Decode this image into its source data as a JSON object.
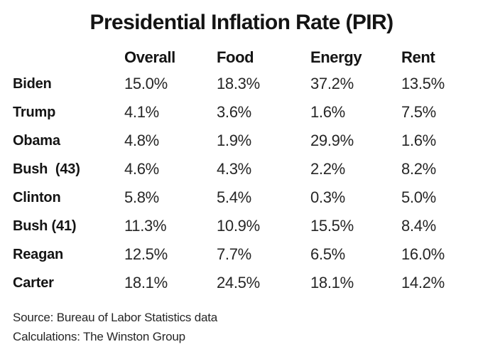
{
  "chart_data": {
    "type": "table",
    "title": "Presidential Inflation Rate (PIR)",
    "columns": [
      "Overall",
      "Food",
      "Energy",
      "Rent"
    ],
    "rows": [
      {
        "label": "Biden",
        "overall": "15.0%",
        "food": "18.3%",
        "energy": "37.2%",
        "rent": "13.5%"
      },
      {
        "label": "Trump",
        "overall": "4.1%",
        "food": "3.6%",
        "energy": "1.6%",
        "rent": "7.5%"
      },
      {
        "label": "Obama",
        "overall": "4.8%",
        "food": "1.9%",
        "energy": "29.9%",
        "rent": "1.6%"
      },
      {
        "label": "Bush  (43)",
        "overall": "4.6%",
        "food": "4.3%",
        "energy": "2.2%",
        "rent": "8.2%"
      },
      {
        "label": "Clinton",
        "overall": "5.8%",
        "food": "5.4%",
        "energy": "0.3%",
        "rent": "5.0%"
      },
      {
        "label": "Bush (41)",
        "overall": "11.3%",
        "food": "10.9%",
        "energy": "15.5%",
        "rent": "8.4%"
      },
      {
        "label": "Reagan",
        "overall": "12.5%",
        "food": "7.7%",
        "energy": "6.5%",
        "rent": "16.0%"
      },
      {
        "label": "Carter",
        "overall": "18.1%",
        "food": "24.5%",
        "energy": "18.1%",
        "rent": "14.2%"
      }
    ],
    "notes": [
      "Source: Bureau of Labor Statistics data",
      "Calculations: The Winston Group"
    ],
    "layout": {
      "grid": "off",
      "header_position": "top",
      "value_alignment": "left"
    }
  },
  "colors": {
    "background": "#ffffff",
    "text_primary": "#141414",
    "text_values": "#262626"
  }
}
